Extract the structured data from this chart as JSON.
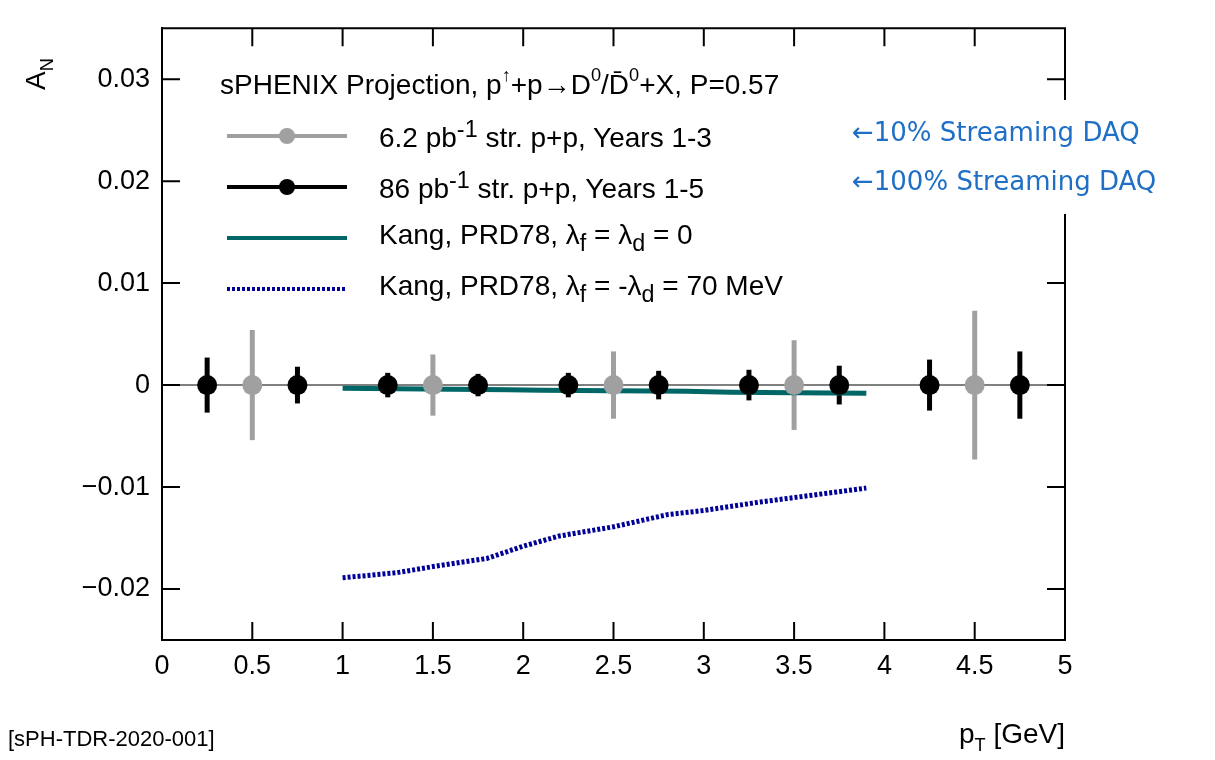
{
  "chart_data": {
    "type": "scatter",
    "title": "sPHENIX Projection, p$^{↑}$+p→D$^{0}$/D̄$^{0}$+X, P=0.57",
    "xlabel": "p$_{T}$ [GeV]",
    "ylabel": "A$_{N}$",
    "xlim": [
      0,
      5
    ],
    "xticks": [
      0,
      0.5,
      1,
      1.5,
      2,
      2.5,
      3,
      3.5,
      4,
      4.5,
      5
    ],
    "ylim": [
      -0.025,
      0.035
    ],
    "yticks": [
      {
        "value": -0.02,
        "label": "−0.02"
      },
      {
        "value": -0.01,
        "label": "−0.01"
      },
      0,
      0.01,
      0.02,
      0.03
    ],
    "grid": false,
    "legend": "top",
    "marker": "circle",
    "ref_lines": [
      {
        "axis": "y",
        "value": 0,
        "color": "#808080"
      }
    ],
    "series": [
      {
        "name": "6.2 pb$^{-1}$ str. p+p, Years 1-3",
        "color": "#a0a0a0",
        "x": [
          0.5,
          1.5,
          2.5,
          3.5,
          4.5
        ],
        "values": [
          0,
          0,
          0,
          0,
          0
        ],
        "errors": [
          0.0054,
          0.003,
          0.0033,
          0.0044,
          0.0073
        ]
      },
      {
        "name": "86 pb$^{-1}$ str. p+p, Years 1-5",
        "color": "#000000",
        "x": [
          0.25,
          0.75,
          1.25,
          1.75,
          2.25,
          2.75,
          3.25,
          3.75,
          4.25,
          4.75
        ],
        "values": [
          0,
          0,
          0,
          0,
          0,
          0,
          0,
          0,
          0,
          0
        ],
        "errors": [
          0.0027,
          0.0018,
          0.0012,
          0.0011,
          0.0012,
          0.0014,
          0.0015,
          0.0019,
          0.0025,
          0.0033
        ]
      },
      {
        "name": "Kang, PRD78, λ$_{f}$ = λ$_{d}$ = 0",
        "type": "line",
        "color": "#006666",
        "marker": "none",
        "line_style": "solid",
        "x": [
          1,
          1.6,
          2.1,
          2.9,
          3.15,
          3.9
        ],
        "values": [
          -0.0003,
          -0.0004,
          -0.0005,
          -0.0006,
          -0.0007,
          -0.0008
        ]
      },
      {
        "name": "Kang, PRD78, λ$_{f}$ = -λ$_{d}$ = 70 MeV",
        "type": "line",
        "color": "#000099",
        "marker": "none",
        "line_style": "dotted",
        "x": [
          1,
          1.3,
          1.5,
          1.8,
          2,
          2.2,
          2.5,
          2.8,
          3,
          3.3,
          3.6,
          3.9
        ],
        "values": [
          -0.0189,
          -0.0184,
          -0.0178,
          -0.017,
          -0.0158,
          -0.0148,
          -0.0139,
          -0.0127,
          -0.0123,
          -0.0115,
          -0.0108,
          -0.0101
        ]
      }
    ],
    "annotations": [
      "←10% Streaming DAQ",
      "←100% Streaming DAQ",
      "[sPH-TDR-2020-001]"
    ]
  }
}
